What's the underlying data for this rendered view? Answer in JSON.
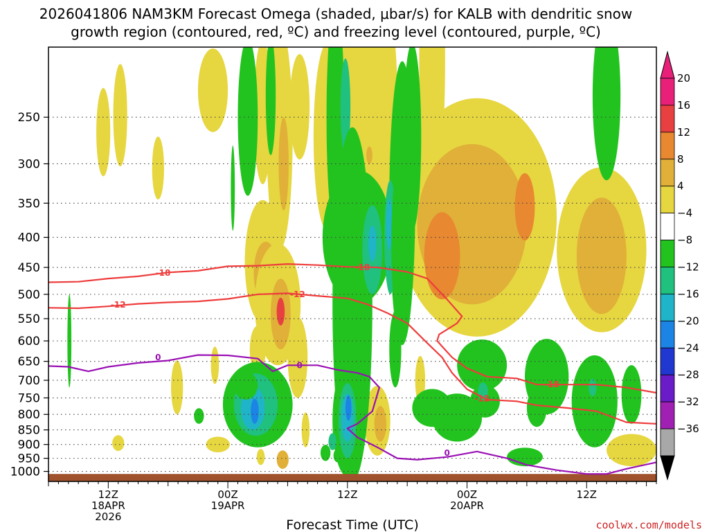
{
  "title": {
    "line1": "2026041806 NAM3KM Forecast Omega (shaded, μbar/s) for KALB with dendritic snow",
    "line2": "growth region (contoured, red, ºC) and freezing level (contoured, purple, ºC)"
  },
  "credit": "coolwx.com/models",
  "chart_data": {
    "type": "heatmap",
    "title": "2026041806 NAM3KM Forecast Omega (shaded, μbar/s) for KALB with dendritic snow growth region (contoured, red, ºC) and freezing level (contoured, purple, ºC)",
    "xlabel": "Forecast Time (UTC)",
    "ylabel": "",
    "x_axis": {
      "ticks": [
        {
          "hour": 12,
          "lines": [
            "12Z",
            "18APR",
            "2026"
          ]
        },
        {
          "hour": 24,
          "lines": [
            "00Z",
            "19APR"
          ]
        },
        {
          "hour": 36,
          "lines": [
            "12Z"
          ]
        },
        {
          "hour": 48,
          "lines": [
            "00Z",
            "20APR"
          ]
        },
        {
          "hour": 60,
          "lines": [
            "12Z"
          ]
        }
      ],
      "range_hours": [
        6,
        67
      ]
    },
    "y_axis": {
      "scale": "log-pressure (inverted)",
      "range_hPa": [
        1040,
        190
      ],
      "ticks": [
        250,
        300,
        350,
        400,
        450,
        500,
        550,
        600,
        650,
        700,
        750,
        800,
        850,
        900,
        950,
        1000
      ]
    },
    "grid": "dotted gridlines at every pressure tick",
    "colorbar": {
      "units": "μbar/s",
      "ticks": [
        20,
        16,
        12,
        8,
        4,
        -4,
        -8,
        -12,
        -16,
        -20,
        -24,
        -28,
        -32,
        -36
      ],
      "bins": [
        {
          "range": [
            20,
            24
          ],
          "color": "#e8207a"
        },
        {
          "range": [
            16,
            20
          ],
          "color": "#e84040"
        },
        {
          "range": [
            12,
            16
          ],
          "color": "#e88830"
        },
        {
          "range": [
            8,
            12
          ],
          "color": "#e0b038"
        },
        {
          "range": [
            4,
            8
          ],
          "color": "#e6d640"
        },
        {
          "range": [
            -4,
            4
          ],
          "color": "#ffffff"
        },
        {
          "range": [
            -8,
            -4
          ],
          "color": "#22c31f"
        },
        {
          "range": [
            -12,
            -8
          ],
          "color": "#20c07e"
        },
        {
          "range": [
            -16,
            -12
          ],
          "color": "#20b4c8"
        },
        {
          "range": [
            -20,
            -16
          ],
          "color": "#1c84e4"
        },
        {
          "range": [
            -24,
            -20
          ],
          "color": "#2038d0"
        },
        {
          "range": [
            -28,
            -24
          ],
          "color": "#6a1cc8"
        },
        {
          "range": [
            -32,
            -28
          ],
          "color": "#a020b4"
        },
        {
          "range": [
            -36,
            -32
          ],
          "color": "#a8a8a8"
        }
      ],
      "ends": {
        "top": "#e8207a",
        "bottom": "#000000"
      }
    },
    "omega_regions": [
      {
        "t": 11.5,
        "p": 265,
        "dt": 0.7,
        "dp": 50,
        "value": 5
      },
      {
        "t": 13.2,
        "p": 248,
        "dt": 0.7,
        "dp": 55,
        "value": 5
      },
      {
        "t": 17.0,
        "p": 305,
        "dt": 0.6,
        "dp": 40,
        "value": 5
      },
      {
        "t": 22.5,
        "p": 225,
        "dt": 1.5,
        "dp": 40,
        "value": 5
      },
      {
        "t": 27.5,
        "p": 245,
        "dt": 0.9,
        "dp": 80,
        "value": 5
      },
      {
        "t": 29.2,
        "p": 270,
        "dt": 1.3,
        "dp": 150,
        "value": 5
      },
      {
        "t": 29.6,
        "p": 300,
        "dt": 0.5,
        "dp": 60,
        "value": 10
      },
      {
        "t": 31.2,
        "p": 240,
        "dt": 1.0,
        "dp": 55,
        "value": 5
      },
      {
        "t": 34.0,
        "p": 270,
        "dt": 1.4,
        "dp": 120,
        "value": 5
      },
      {
        "t": 38.0,
        "p": 230,
        "dt": 3.0,
        "dp": 170,
        "value": 5
      },
      {
        "t": 38.2,
        "p": 290,
        "dt": 0.3,
        "dp": 10,
        "value": 10
      },
      {
        "t": 44.5,
        "p": 200,
        "dt": 1.3,
        "dp": 150,
        "value": 5
      },
      {
        "t": 49.0,
        "p": 370,
        "dt": 8.0,
        "dp": 220,
        "value": 5
      },
      {
        "t": 48.5,
        "p": 380,
        "dt": 5.5,
        "dp": 140,
        "value": 9
      },
      {
        "t": 45.5,
        "p": 430,
        "dt": 1.8,
        "dp": 80,
        "value": 13
      },
      {
        "t": 53.8,
        "p": 355,
        "dt": 1.0,
        "dp": 50,
        "value": 12
      },
      {
        "t": 61.5,
        "p": 420,
        "dt": 4.5,
        "dp": 160,
        "value": 5
      },
      {
        "t": 61.5,
        "p": 430,
        "dt": 2.5,
        "dp": 110,
        "value": 9
      },
      {
        "t": 27.5,
        "p": 440,
        "dt": 1.8,
        "dp": 120,
        "value": 5
      },
      {
        "t": 27.8,
        "p": 460,
        "dt": 1.2,
        "dp": 60,
        "value": 9
      },
      {
        "t": 29.0,
        "p": 520,
        "dt": 2.3,
        "dp": 140,
        "value": 5
      },
      {
        "t": 29.3,
        "p": 540,
        "dt": 1.0,
        "dp": 80,
        "value": 10
      },
      {
        "t": 29.3,
        "p": 535,
        "dt": 0.4,
        "dp": 30,
        "value": 18
      },
      {
        "t": 27.0,
        "p": 620,
        "dt": 0.8,
        "dp": 60,
        "value": 5
      },
      {
        "t": 31.0,
        "p": 640,
        "dt": 1.0,
        "dp": 110,
        "value": 5
      },
      {
        "t": 18.9,
        "p": 720,
        "dt": 0.6,
        "dp": 80,
        "value": 5
      },
      {
        "t": 22.7,
        "p": 660,
        "dt": 0.4,
        "dp": 50,
        "value": 5
      },
      {
        "t": 23.0,
        "p": 900,
        "dt": 1.2,
        "dp": 28,
        "value": 5
      },
      {
        "t": 13.0,
        "p": 895,
        "dt": 0.6,
        "dp": 28,
        "value": 5
      },
      {
        "t": 31.8,
        "p": 850,
        "dt": 0.4,
        "dp": 60,
        "value": 5
      },
      {
        "t": 27.3,
        "p": 945,
        "dt": 0.4,
        "dp": 30,
        "value": 5
      },
      {
        "t": 29.5,
        "p": 955,
        "dt": 0.6,
        "dp": 35,
        "value": 9
      },
      {
        "t": 39.0,
        "p": 820,
        "dt": 1.3,
        "dp": 120,
        "value": 5
      },
      {
        "t": 39.3,
        "p": 830,
        "dt": 0.6,
        "dp": 60,
        "value": 10
      },
      {
        "t": 43.3,
        "p": 700,
        "dt": 0.5,
        "dp": 70,
        "value": 5
      },
      {
        "t": 64.5,
        "p": 920,
        "dt": 2.5,
        "dp": 60,
        "value": 5
      },
      {
        "t": 24.5,
        "p": 330,
        "dt": 0.2,
        "dp": 60,
        "value": -6
      },
      {
        "t": 26.0,
        "p": 250,
        "dt": 1.0,
        "dp": 90,
        "value": -6
      },
      {
        "t": 28.3,
        "p": 230,
        "dt": 0.5,
        "dp": 60,
        "value": -6
      },
      {
        "t": 34.8,
        "p": 250,
        "dt": 0.9,
        "dp": 140,
        "value": -6
      },
      {
        "t": 35.8,
        "p": 240,
        "dt": 0.5,
        "dp": 50,
        "value": -10
      },
      {
        "t": 36.5,
        "p": 520,
        "dt": 2.0,
        "dp": 520,
        "value": -6
      },
      {
        "t": 37.0,
        "p": 400,
        "dt": 3.5,
        "dp": 120,
        "value": -6
      },
      {
        "t": 38.5,
        "p": 420,
        "dt": 1.0,
        "dp": 80,
        "value": -10
      },
      {
        "t": 38.5,
        "p": 410,
        "dt": 0.4,
        "dp": 30,
        "value": -14
      },
      {
        "t": 41.5,
        "p": 350,
        "dt": 1.3,
        "dp": 260,
        "value": -6
      },
      {
        "t": 40.3,
        "p": 400,
        "dt": 0.6,
        "dp": 100,
        "value": -10
      },
      {
        "t": 40.2,
        "p": 380,
        "dt": 0.3,
        "dp": 40,
        "value": -14
      },
      {
        "t": 42.5,
        "p": 270,
        "dt": 0.9,
        "dp": 120,
        "value": -6
      },
      {
        "t": 41.2,
        "p": 410,
        "dt": 0.8,
        "dp": 150,
        "value": -6
      },
      {
        "t": 40.8,
        "p": 620,
        "dt": 0.6,
        "dp": 100,
        "value": -6
      },
      {
        "t": 36.0,
        "p": 820,
        "dt": 1.5,
        "dp": 200,
        "value": -6
      },
      {
        "t": 36.0,
        "p": 820,
        "dt": 0.9,
        "dp": 130,
        "value": -10
      },
      {
        "t": 36.0,
        "p": 810,
        "dt": 0.6,
        "dp": 80,
        "value": -14
      },
      {
        "t": 36.1,
        "p": 780,
        "dt": 0.3,
        "dp": 40,
        "value": -17
      },
      {
        "t": 33.8,
        "p": 930,
        "dt": 0.5,
        "dp": 30,
        "value": -6
      },
      {
        "t": 34.5,
        "p": 890,
        "dt": 0.4,
        "dp": 30,
        "value": -10
      },
      {
        "t": 35.0,
        "p": 940,
        "dt": 0.4,
        "dp": 25,
        "value": -6
      },
      {
        "t": 27.0,
        "p": 770,
        "dt": 3.5,
        "dp": 140,
        "value": -6
      },
      {
        "t": 26.8,
        "p": 770,
        "dt": 2.2,
        "dp": 100,
        "value": -10
      },
      {
        "t": 26.5,
        "p": 780,
        "dt": 1.2,
        "dp": 70,
        "value": -14
      },
      {
        "t": 26.7,
        "p": 790,
        "dt": 0.4,
        "dp": 40,
        "value": -17
      },
      {
        "t": 25.8,
        "p": 715,
        "dt": 1.2,
        "dp": 40,
        "value": -6
      },
      {
        "t": 21.1,
        "p": 805,
        "dt": 0.5,
        "dp": 25,
        "value": -6
      },
      {
        "t": 8.1,
        "p": 600,
        "dt": 0.2,
        "dp": 120,
        "value": -6
      },
      {
        "t": 49.5,
        "p": 660,
        "dt": 2.5,
        "dp": 70,
        "value": -6
      },
      {
        "t": 47.0,
        "p": 810,
        "dt": 2.5,
        "dp": 80,
        "value": -6
      },
      {
        "t": 44.5,
        "p": 780,
        "dt": 2.0,
        "dp": 60,
        "value": -6
      },
      {
        "t": 49.8,
        "p": 760,
        "dt": 1.5,
        "dp": 50,
        "value": -6
      },
      {
        "t": 49.6,
        "p": 730,
        "dt": 0.5,
        "dp": 25,
        "value": -10
      },
      {
        "t": 56.0,
        "p": 690,
        "dt": 2.2,
        "dp": 110,
        "value": -6
      },
      {
        "t": 55.0,
        "p": 780,
        "dt": 1.0,
        "dp": 60,
        "value": -6
      },
      {
        "t": 60.8,
        "p": 760,
        "dt": 2.3,
        "dp": 150,
        "value": -6
      },
      {
        "t": 60.6,
        "p": 720,
        "dt": 0.4,
        "dp": 25,
        "value": -10
      },
      {
        "t": 64.5,
        "p": 740,
        "dt": 1.0,
        "dp": 90,
        "value": -6
      },
      {
        "t": 53.8,
        "p": 945,
        "dt": 1.8,
        "dp": 35,
        "value": -6
      },
      {
        "t": 62.0,
        "p": 230,
        "dt": 1.4,
        "dp": 90,
        "value": -6
      }
    ],
    "dendritic_isotherms": [
      {
        "label": "-18",
        "color": "#ee3c3c",
        "points": [
          [
            6,
            477
          ],
          [
            9,
            476
          ],
          [
            12,
            470
          ],
          [
            15,
            466
          ],
          [
            18,
            459
          ],
          [
            21,
            456
          ],
          [
            24,
            448
          ],
          [
            27,
            447
          ],
          [
            30,
            444
          ],
          [
            33,
            446
          ],
          [
            36,
            449
          ],
          [
            39,
            450
          ],
          [
            42,
            458
          ],
          [
            44,
            470
          ],
          [
            46,
            510
          ],
          [
            47.5,
            545
          ],
          [
            47,
            560
          ],
          [
            45.2,
            585
          ],
          [
            45,
            600
          ],
          [
            46.5,
            640
          ],
          [
            48,
            668
          ],
          [
            50,
            690
          ],
          [
            53,
            695
          ],
          [
            55,
            712
          ],
          [
            58,
            712
          ],
          [
            61,
            712
          ],
          [
            64,
            720
          ],
          [
            67,
            735
          ]
        ],
        "label_at": [
          [
            17.5,
            460
          ],
          [
            37.5,
            450
          ],
          [
            56.5,
            712
          ]
        ]
      },
      {
        "label": "-12",
        "color": "#ee3c3c",
        "points": [
          [
            6,
            527
          ],
          [
            9,
            528
          ],
          [
            12,
            524
          ],
          [
            15,
            519
          ],
          [
            18,
            516
          ],
          [
            21,
            514
          ],
          [
            24,
            509
          ],
          [
            27,
            500
          ],
          [
            30,
            498
          ],
          [
            33,
            503
          ],
          [
            36,
            508
          ],
          [
            38,
            520
          ],
          [
            40,
            538
          ],
          [
            42,
            560
          ],
          [
            44,
            605
          ],
          [
            45.5,
            640
          ],
          [
            46.5,
            680
          ],
          [
            48,
            725
          ],
          [
            50,
            755
          ],
          [
            53,
            760
          ],
          [
            55,
            772
          ],
          [
            58,
            780
          ],
          [
            61,
            790
          ],
          [
            64,
            825
          ],
          [
            67,
            830
          ]
        ],
        "label_at": [
          [
            13,
            521
          ],
          [
            31,
            500
          ],
          [
            49.5,
            752
          ]
        ]
      }
    ],
    "freezing_level": {
      "label": "0",
      "color": "#9a10b4",
      "points": [
        [
          6,
          662
        ],
        [
          8,
          664
        ],
        [
          10,
          676
        ],
        [
          12,
          664
        ],
        [
          15,
          654
        ],
        [
          18,
          648
        ],
        [
          21,
          634
        ],
        [
          24,
          635
        ],
        [
          27,
          643
        ],
        [
          28.5,
          676
        ],
        [
          30,
          660
        ],
        [
          33,
          660
        ],
        [
          35,
          672
        ],
        [
          37,
          680
        ],
        [
          38.2,
          690
        ],
        [
          39.2,
          720
        ],
        [
          38.5,
          790
        ],
        [
          37,
          830
        ],
        [
          36,
          845
        ],
        [
          37,
          875
        ],
        [
          39,
          910
        ],
        [
          41,
          950
        ],
        [
          43,
          955
        ],
        [
          46,
          945
        ],
        [
          49,
          925
        ],
        [
          52,
          950
        ],
        [
          54,
          975
        ],
        [
          57,
          995
        ],
        [
          60,
          1010
        ],
        [
          62,
          1010
        ],
        [
          64,
          990
        ],
        [
          67,
          965
        ]
      ],
      "label_at": [
        [
          17,
          640
        ],
        [
          31.2,
          660
        ],
        [
          46,
          930
        ]
      ]
    },
    "terrain": {
      "pressure_hPa": 1010,
      "color": "#a0522d"
    }
  }
}
